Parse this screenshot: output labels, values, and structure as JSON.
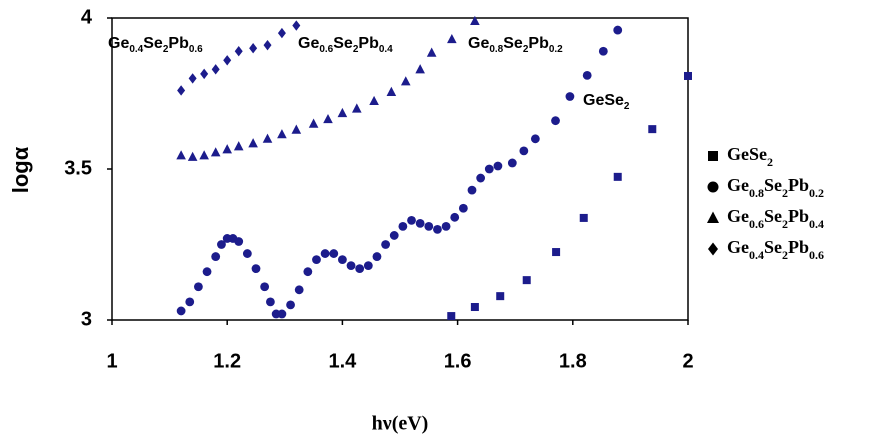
{
  "chart_data": {
    "type": "scatter",
    "x_label": "hν(eV)",
    "y_label": "logα",
    "xlim": [
      1,
      2
    ],
    "xticks": [
      1,
      1.2,
      1.4,
      1.6,
      1.8,
      2
    ],
    "ylim": [
      3,
      4
    ],
    "yticks": [
      3,
      3.5,
      4
    ],
    "legend": "right",
    "annotations": [
      "Ge0.4Se2Pb0.6",
      "Ge0.6Se2Pb0.4",
      "Ge0.8Se2Pb0.2",
      "GeSe2"
    ],
    "series": [
      {
        "name": "GeSe2",
        "color": "#1c1c8c",
        "marker": "square",
        "x": [
          1.589,
          1.63,
          1.674,
          1.72,
          1.771,
          1.819,
          1.878,
          1.938,
          2.0
        ],
        "values": [
          3.013,
          3.043,
          3.079,
          3.132,
          3.225,
          3.338,
          3.474,
          3.632,
          3.808
        ]
      },
      {
        "name": "Ge0.8Se2Pb0.2",
        "color": "#1c1c8c",
        "marker": "circle",
        "x": [
          1.12,
          1.135,
          1.15,
          1.165,
          1.18,
          1.19,
          1.2,
          1.21,
          1.22,
          1.235,
          1.25,
          1.265,
          1.275,
          1.285,
          1.295,
          1.31,
          1.325,
          1.34,
          1.355,
          1.37,
          1.385,
          1.4,
          1.415,
          1.43,
          1.445,
          1.46,
          1.475,
          1.49,
          1.505,
          1.52,
          1.535,
          1.55,
          1.565,
          1.58,
          1.595,
          1.61,
          1.625,
          1.64,
          1.655,
          1.67,
          1.695,
          1.715,
          1.735,
          1.77,
          1.795,
          1.825,
          1.853,
          1.878
        ],
        "values": [
          3.03,
          3.06,
          3.11,
          3.16,
          3.21,
          3.25,
          3.27,
          3.27,
          3.26,
          3.22,
          3.17,
          3.11,
          3.06,
          3.02,
          3.02,
          3.05,
          3.1,
          3.16,
          3.2,
          3.22,
          3.22,
          3.2,
          3.18,
          3.17,
          3.18,
          3.21,
          3.25,
          3.28,
          3.31,
          3.33,
          3.32,
          3.31,
          3.3,
          3.31,
          3.34,
          3.37,
          3.43,
          3.47,
          3.5,
          3.51,
          3.52,
          3.56,
          3.6,
          3.66,
          3.74,
          3.81,
          3.89,
          3.96
        ]
      },
      {
        "name": "Ge0.6Se2Pb0.4",
        "color": "#1c1c8c",
        "marker": "triangle",
        "x": [
          1.12,
          1.14,
          1.16,
          1.18,
          1.2,
          1.22,
          1.245,
          1.27,
          1.295,
          1.32,
          1.35,
          1.375,
          1.4,
          1.425,
          1.455,
          1.485,
          1.51,
          1.535,
          1.555,
          1.59,
          1.63
        ],
        "values": [
          3.545,
          3.54,
          3.545,
          3.555,
          3.565,
          3.575,
          3.585,
          3.6,
          3.615,
          3.63,
          3.65,
          3.665,
          3.685,
          3.7,
          3.725,
          3.755,
          3.79,
          3.83,
          3.885,
          3.93,
          3.99
        ]
      },
      {
        "name": "Ge0.4Se2Pb0.6",
        "color": "#1c1c8c",
        "marker": "diamond",
        "x": [
          1.12,
          1.14,
          1.16,
          1.18,
          1.2,
          1.22,
          1.245,
          1.27,
          1.295,
          1.32
        ],
        "values": [
          3.76,
          3.8,
          3.815,
          3.83,
          3.86,
          3.89,
          3.9,
          3.91,
          3.95,
          3.975
        ]
      }
    ]
  }
}
